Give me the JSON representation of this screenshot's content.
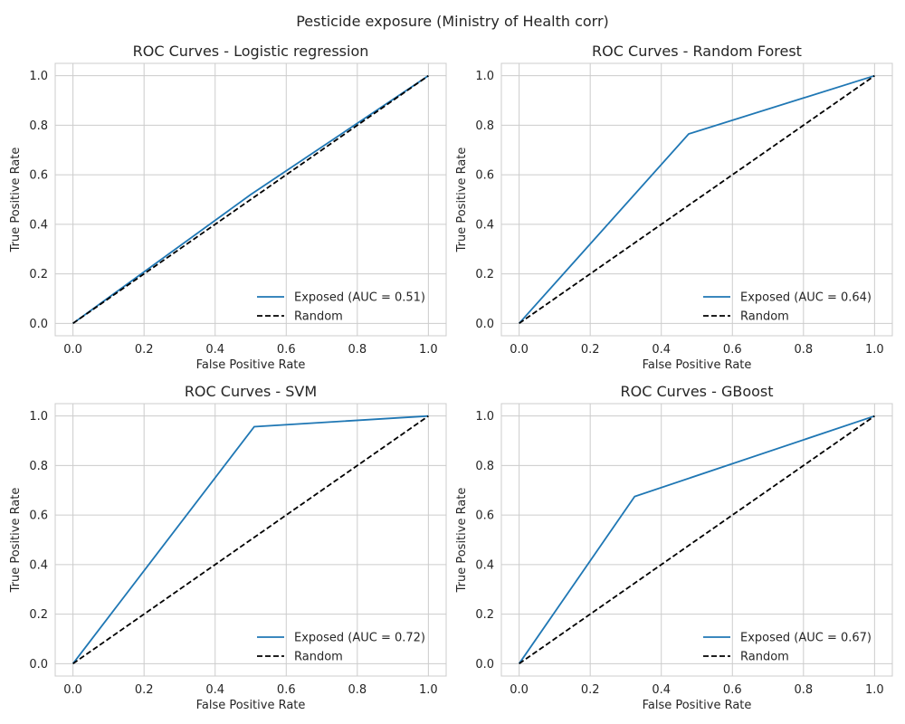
{
  "figure": {
    "title": "Pesticide exposure (Ministry of Health corr)"
  },
  "colors": {
    "model_curve": "#1f77b4",
    "random_line": "#000000",
    "grid": "#cccccc",
    "text": "#262626"
  },
  "chart_data": [
    {
      "type": "line",
      "title": "ROC Curves - Logistic regression",
      "xlabel": "False Positive Rate",
      "ylabel": "True Positive Rate",
      "xlim": [
        -0.05,
        1.05
      ],
      "ylim": [
        -0.05,
        1.05
      ],
      "xticks": [
        0.0,
        0.2,
        0.4,
        0.6,
        0.8,
        1.0
      ],
      "yticks": [
        0.0,
        0.2,
        0.4,
        0.6,
        0.8,
        1.0
      ],
      "grid": true,
      "legend_position": "lower-right",
      "series": [
        {
          "name": "Exposed (AUC = 0.51)",
          "x": [
            0.0,
            0.5,
            1.0
          ],
          "y": [
            0.0,
            0.52,
            1.0
          ],
          "style": "solid"
        },
        {
          "name": "Random",
          "x": [
            0.0,
            1.0
          ],
          "y": [
            0.0,
            1.0
          ],
          "style": "dashed"
        }
      ]
    },
    {
      "type": "line",
      "title": "ROC Curves - Random Forest",
      "xlabel": "False Positive Rate",
      "ylabel": "True Positive Rate",
      "xlim": [
        -0.05,
        1.05
      ],
      "ylim": [
        -0.05,
        1.05
      ],
      "xticks": [
        0.0,
        0.2,
        0.4,
        0.6,
        0.8,
        1.0
      ],
      "yticks": [
        0.0,
        0.2,
        0.4,
        0.6,
        0.8,
        1.0
      ],
      "grid": true,
      "legend_position": "lower-right",
      "series": [
        {
          "name": "Exposed (AUC = 0.64)",
          "x": [
            0.0,
            0.477,
            1.0
          ],
          "y": [
            0.0,
            0.765,
            1.0
          ],
          "style": "solid"
        },
        {
          "name": "Random",
          "x": [
            0.0,
            1.0
          ],
          "y": [
            0.0,
            1.0
          ],
          "style": "dashed"
        }
      ]
    },
    {
      "type": "line",
      "title": "ROC Curves - SVM",
      "xlabel": "False Positive Rate",
      "ylabel": "True Positive Rate",
      "xlim": [
        -0.05,
        1.05
      ],
      "ylim": [
        -0.05,
        1.05
      ],
      "xticks": [
        0.0,
        0.2,
        0.4,
        0.6,
        0.8,
        1.0
      ],
      "yticks": [
        0.0,
        0.2,
        0.4,
        0.6,
        0.8,
        1.0
      ],
      "grid": true,
      "legend_position": "lower-right",
      "series": [
        {
          "name": "Exposed (AUC = 0.72)",
          "x": [
            0.0,
            0.51,
            1.0
          ],
          "y": [
            0.0,
            0.957,
            1.0
          ],
          "style": "solid"
        },
        {
          "name": "Random",
          "x": [
            0.0,
            1.0
          ],
          "y": [
            0.0,
            1.0
          ],
          "style": "dashed"
        }
      ]
    },
    {
      "type": "line",
      "title": "ROC Curves - GBoost",
      "xlabel": "False Positive Rate",
      "ylabel": "True Positive Rate",
      "xlim": [
        -0.05,
        1.05
      ],
      "ylim": [
        -0.05,
        1.05
      ],
      "xticks": [
        0.0,
        0.2,
        0.4,
        0.6,
        0.8,
        1.0
      ],
      "yticks": [
        0.0,
        0.2,
        0.4,
        0.6,
        0.8,
        1.0
      ],
      "grid": true,
      "legend_position": "lower-right",
      "series": [
        {
          "name": "Exposed (AUC = 0.67)",
          "x": [
            0.0,
            0.325,
            1.0
          ],
          "y": [
            0.0,
            0.675,
            1.0
          ],
          "style": "solid"
        },
        {
          "name": "Random",
          "x": [
            0.0,
            1.0
          ],
          "y": [
            0.0,
            1.0
          ],
          "style": "dashed"
        }
      ]
    }
  ]
}
